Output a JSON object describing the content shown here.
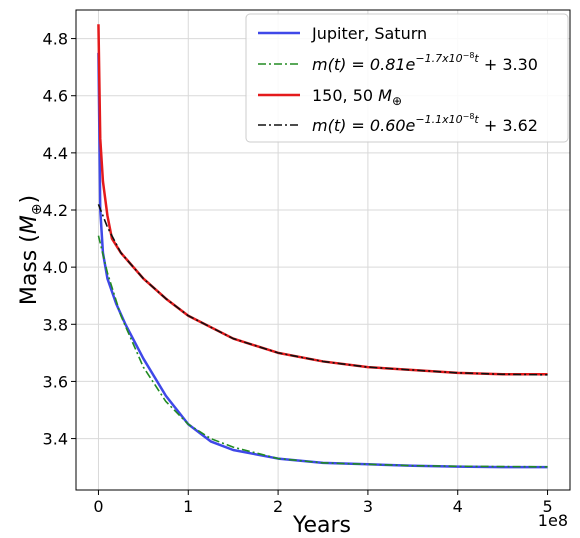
{
  "chart_data": {
    "type": "line",
    "xlabel": "Years",
    "ylabel_main": "Mass (",
    "ylabel_symbol": "M",
    "ylabel_sub": "⊕",
    "ylabel_close": ")",
    "x_offset_label": "1e8",
    "xlim": [
      -0.25,
      5.25
    ],
    "ylim": [
      3.22,
      4.9
    ],
    "x_ticks": [
      0,
      1,
      2,
      3,
      4,
      5
    ],
    "y_ticks": [
      3.4,
      3.6,
      3.8,
      4.0,
      4.2,
      4.4,
      4.6,
      4.8
    ],
    "grid": true,
    "legend_position": "top-right",
    "series": [
      {
        "name": "Jupiter, Saturn",
        "color": "#3f48e8",
        "style": "solid",
        "x": [
          0.0,
          0.02,
          0.05,
          0.1,
          0.2,
          0.3,
          0.5,
          0.75,
          1.0,
          1.25,
          1.5,
          2.0,
          2.5,
          3.0,
          3.5,
          4.0,
          4.5,
          5.0
        ],
        "y": [
          4.75,
          4.2,
          4.05,
          3.96,
          3.87,
          3.8,
          3.68,
          3.55,
          3.45,
          3.39,
          3.36,
          3.33,
          3.315,
          3.31,
          3.305,
          3.302,
          3.3,
          3.3
        ]
      },
      {
        "name": "m(t) = 0.81e^{-1.7x10^{-8}t} + 3.30",
        "legend_prefix": "m(t) = 0.81e",
        "legend_exp": "−1.7x10",
        "legend_exp_sup": "−8",
        "legend_exp_t": "t",
        "legend_suffix": " + 3.30",
        "color": "#228b22",
        "style": "dashdot",
        "x": [
          0.0,
          0.1,
          0.25,
          0.5,
          0.75,
          1.0,
          1.25,
          1.5,
          2.0,
          2.5,
          3.0,
          3.5,
          4.0,
          4.5,
          5.0
        ],
        "y": [
          4.11,
          3.98,
          3.83,
          3.65,
          3.53,
          3.45,
          3.4,
          3.37,
          3.33,
          3.315,
          3.31,
          3.305,
          3.303,
          3.302,
          3.301
        ]
      },
      {
        "name": "150, 50 M⊕",
        "legend_prefix": "150, 50 ",
        "legend_sym": "M",
        "legend_sub": "⊕",
        "color": "#e41a1c",
        "style": "solid",
        "x": [
          0.0,
          0.02,
          0.05,
          0.1,
          0.15,
          0.25,
          0.5,
          0.75,
          1.0,
          1.5,
          2.0,
          2.5,
          3.0,
          3.5,
          4.0,
          4.5,
          5.0
        ],
        "y": [
          4.85,
          4.45,
          4.3,
          4.18,
          4.1,
          4.05,
          3.96,
          3.89,
          3.83,
          3.75,
          3.7,
          3.67,
          3.65,
          3.64,
          3.63,
          3.625,
          3.625
        ]
      },
      {
        "name": "m(t) = 0.60e^{-1.1x10^{-8}t} + 3.62",
        "legend_prefix": "m(t) = 0.60e",
        "legend_exp": "−1.1x10",
        "legend_exp_sup": "−8",
        "legend_exp_t": "t",
        "legend_suffix": " + 3.62",
        "color": "#111111",
        "style": "dashdot",
        "x": [
          0.0,
          0.1,
          0.25,
          0.5,
          0.75,
          1.0,
          1.5,
          2.0,
          2.5,
          3.0,
          3.5,
          4.0,
          4.5,
          5.0
        ],
        "y": [
          4.22,
          4.14,
          4.05,
          3.96,
          3.89,
          3.83,
          3.75,
          3.7,
          3.67,
          3.65,
          3.64,
          3.63,
          3.625,
          3.623
        ]
      }
    ]
  }
}
